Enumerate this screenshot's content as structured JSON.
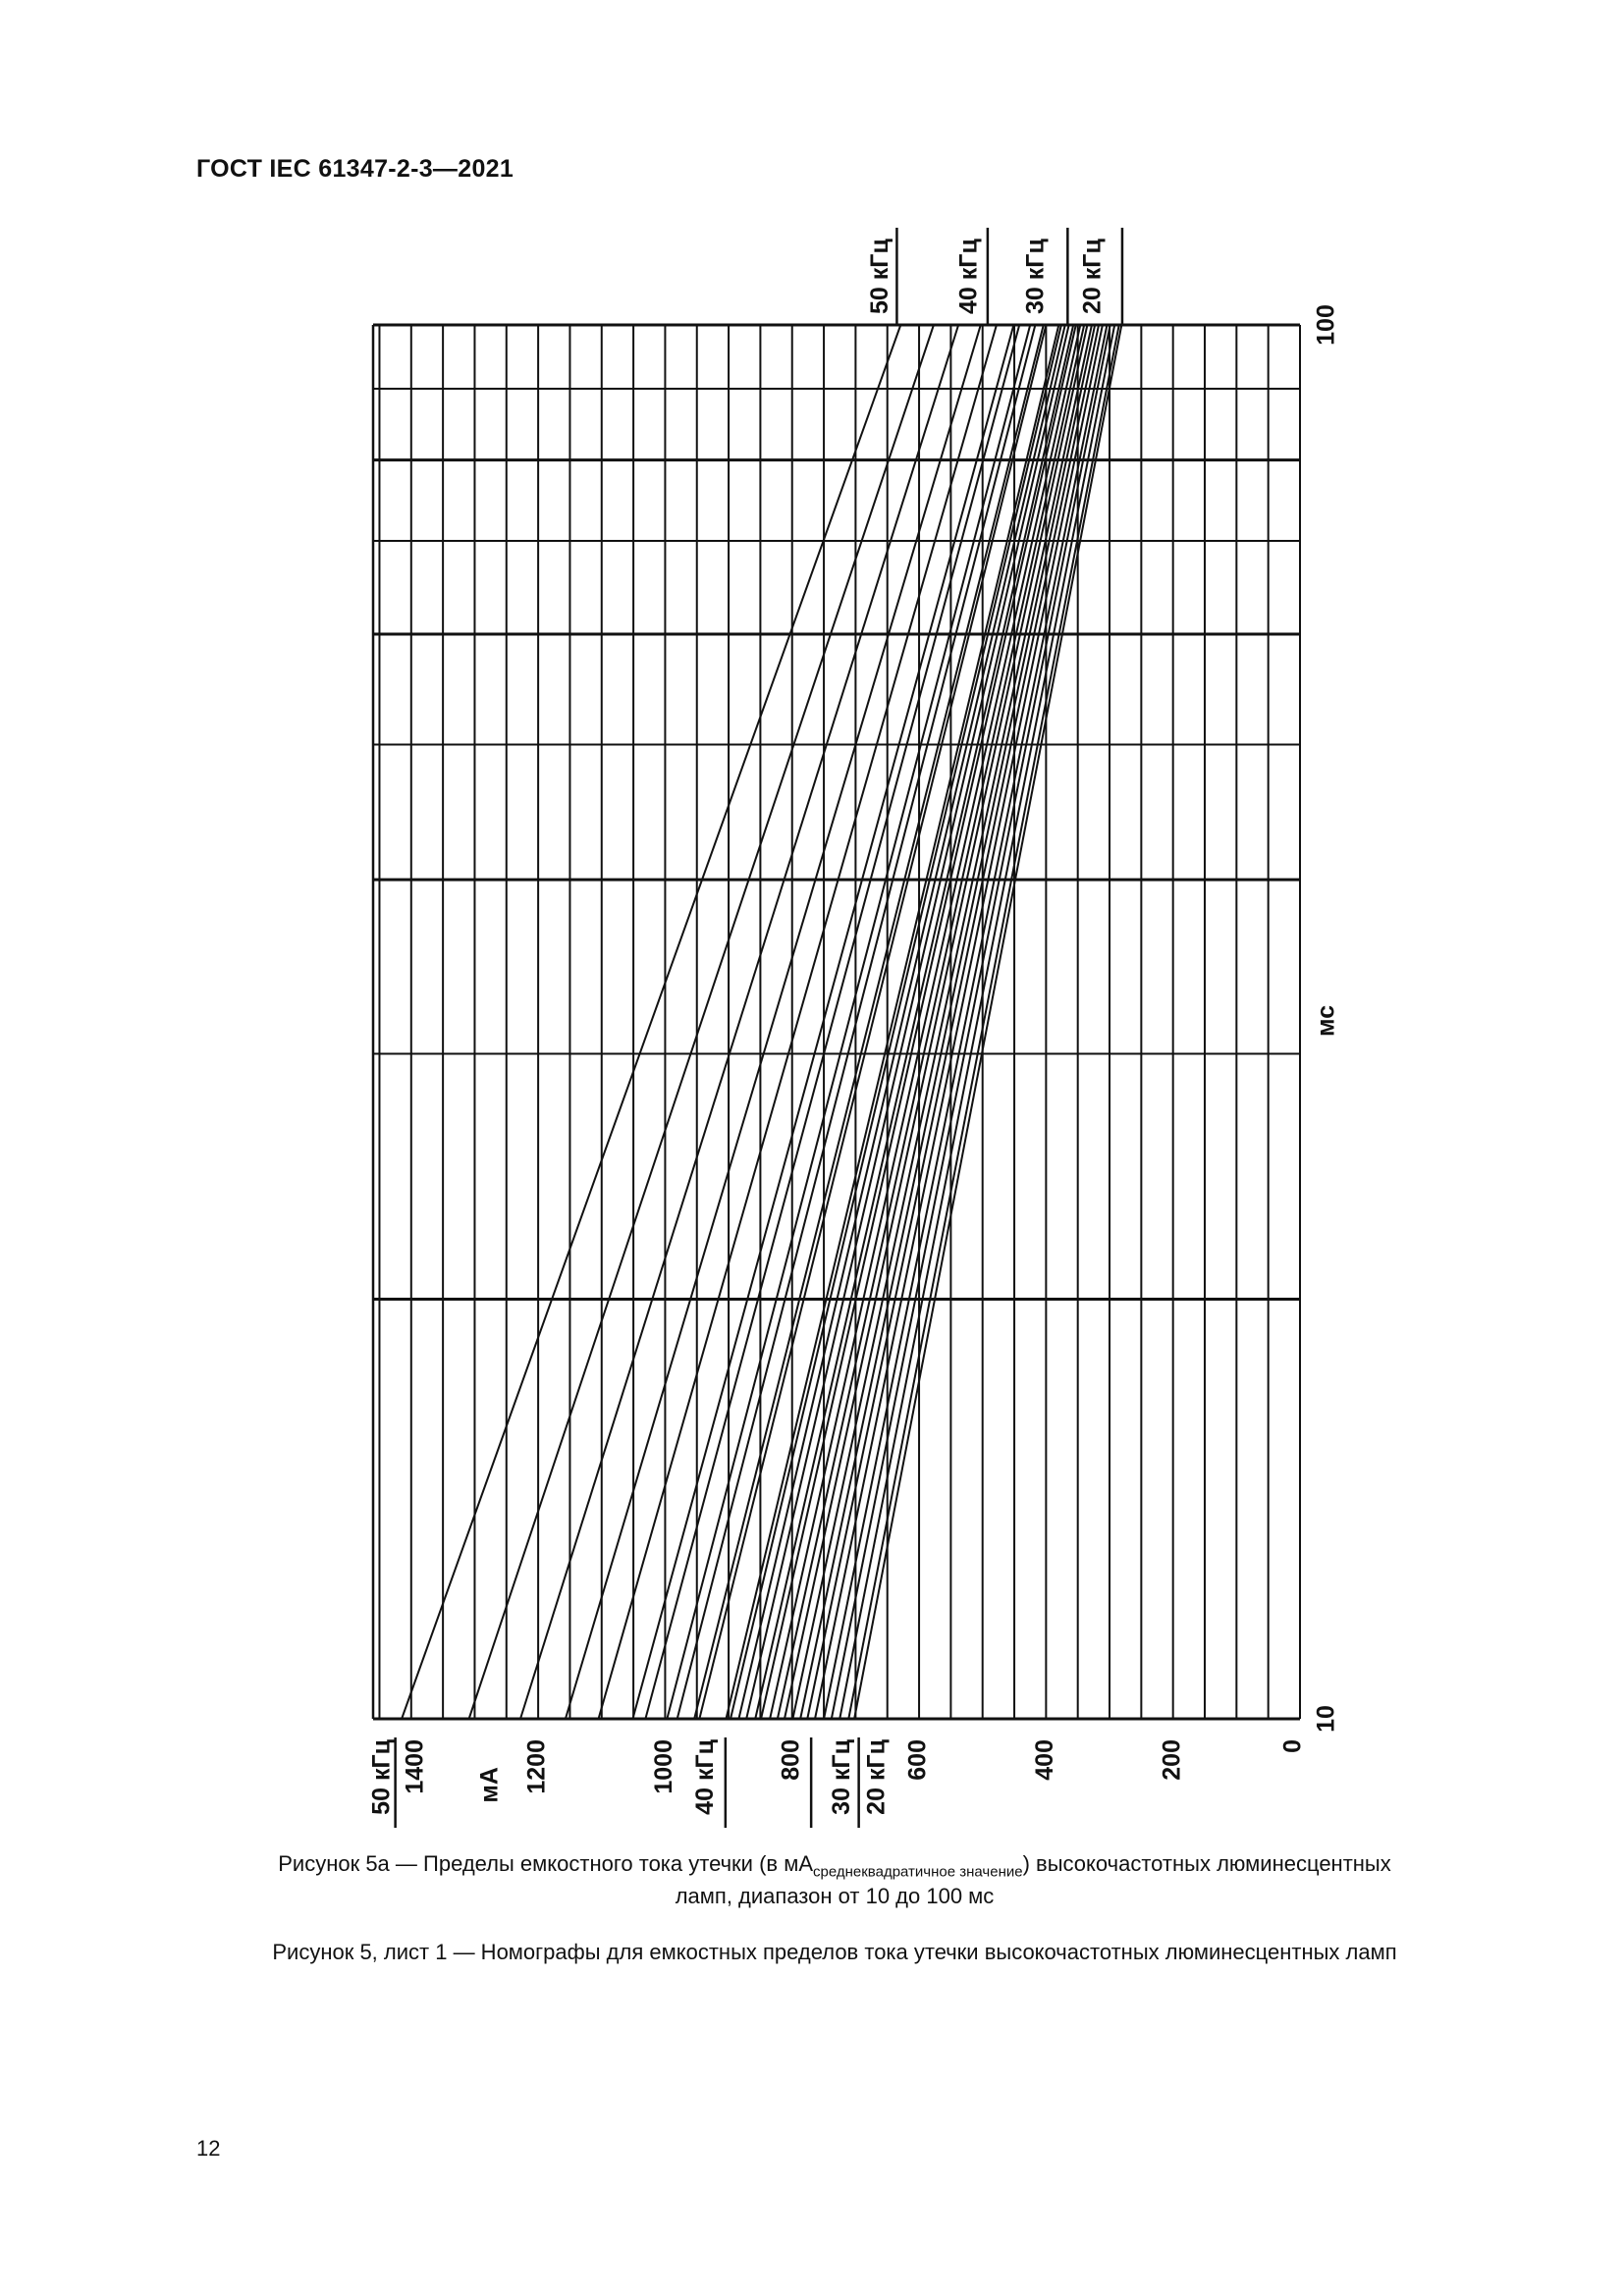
{
  "header": {
    "title": "ГОСТ IEC 61347-2-3—2021"
  },
  "caption": {
    "figure_prefix": "Рисунок 5а — Пределы емкостного тока утечки (в мА",
    "figure_sub": "среднеквадратичное значение",
    "figure_suffix": ") высокочастотных люминесцентных",
    "figure_line2": "ламп, диапазон от 10 до 100 мс",
    "sheet": "Рисунок 5, лист 1 — Номографы для емкостных пределов тока утечки высокочастотных люминесцентных ламп"
  },
  "page_number": "12",
  "chart_data": {
    "type": "line",
    "title": "",
    "x_unit_label": "мА",
    "y_unit_label": "мс",
    "xlim": [
      0,
      1460
    ],
    "x_reversed": true,
    "ylim": [
      10,
      100
    ],
    "y_scale": "log",
    "grid": true,
    "x_grid_step": 50,
    "y_grid": [
      10,
      20,
      30,
      40,
      50,
      60,
      70,
      80,
      90,
      100
    ],
    "x_tick_labels": [
      {
        "value": 1400,
        "label": "1400"
      },
      {
        "value": 1200,
        "label": "1200"
      },
      {
        "value": 1000,
        "label": "1000"
      },
      {
        "value": 800,
        "label": "800"
      },
      {
        "value": 600,
        "label": "600"
      },
      {
        "value": 400,
        "label": "400"
      },
      {
        "value": 200,
        "label": "200"
      },
      {
        "value": 0,
        "label": "0"
      }
    ],
    "y_tick_labels": [
      {
        "value": 10,
        "label": "10"
      },
      {
        "value": 100,
        "label": "100"
      }
    ],
    "bottom_markers": [
      {
        "value": 1445,
        "label": "50 кГц"
      },
      {
        "value": 935,
        "label": "40 кГц"
      },
      {
        "value": 720,
        "label": "30 кГц"
      },
      {
        "value": 665,
        "label": "20 кГц"
      }
    ],
    "bottom_separator_values": [
      1425,
      905,
      770,
      695
    ],
    "top_markers": [
      {
        "value": 660,
        "label": "50 кГц"
      },
      {
        "value": 520,
        "label": "40 кГц"
      },
      {
        "value": 415,
        "label": "30 кГц"
      },
      {
        "value": 325,
        "label": "20 кГц"
      }
    ],
    "top_separator_values": [
      635,
      492,
      366,
      280
    ],
    "series": [
      {
        "ma_at_10ms": 1415,
        "ma_at_100ms": 629
      },
      {
        "ma_at_10ms": 1309,
        "ma_at_100ms": 577
      },
      {
        "ma_at_10ms": 1228,
        "ma_at_100ms": 538
      },
      {
        "ma_at_10ms": 1157,
        "ma_at_100ms": 503
      },
      {
        "ma_at_10ms": 1105,
        "ma_at_100ms": 478
      },
      {
        "ma_at_10ms": 1051,
        "ma_at_100ms": 451
      },
      {
        "ma_at_10ms": 1031,
        "ma_at_100ms": 442
      },
      {
        "ma_at_10ms": 997,
        "ma_at_100ms": 425
      },
      {
        "ma_at_10ms": 981,
        "ma_at_100ms": 417
      },
      {
        "ma_at_10ms": 954,
        "ma_at_100ms": 404
      },
      {
        "ma_at_10ms": 946,
        "ma_at_100ms": 400
      },
      {
        "ma_at_10ms": 904,
        "ma_at_100ms": 380
      },
      {
        "ma_at_10ms": 897,
        "ma_at_100ms": 376
      },
      {
        "ma_at_10ms": 884,
        "ma_at_100ms": 370
      },
      {
        "ma_at_10ms": 872,
        "ma_at_100ms": 364
      },
      {
        "ma_at_10ms": 858,
        "ma_at_100ms": 357
      },
      {
        "ma_at_10ms": 849,
        "ma_at_100ms": 353
      },
      {
        "ma_at_10ms": 835,
        "ma_at_100ms": 346
      },
      {
        "ma_at_10ms": 823,
        "ma_at_100ms": 340
      },
      {
        "ma_at_10ms": 812,
        "ma_at_100ms": 335
      },
      {
        "ma_at_10ms": 799,
        "ma_at_100ms": 328
      },
      {
        "ma_at_10ms": 787,
        "ma_at_100ms": 323
      },
      {
        "ma_at_10ms": 776,
        "ma_at_100ms": 317
      },
      {
        "ma_at_10ms": 764,
        "ma_at_100ms": 311
      },
      {
        "ma_at_10ms": 750,
        "ma_at_100ms": 304
      },
      {
        "ma_at_10ms": 738,
        "ma_at_100ms": 299
      },
      {
        "ma_at_10ms": 725,
        "ma_at_100ms": 292
      },
      {
        "ma_at_10ms": 711,
        "ma_at_100ms": 285
      },
      {
        "ma_at_10ms": 702,
        "ma_at_100ms": 281
      }
    ]
  }
}
